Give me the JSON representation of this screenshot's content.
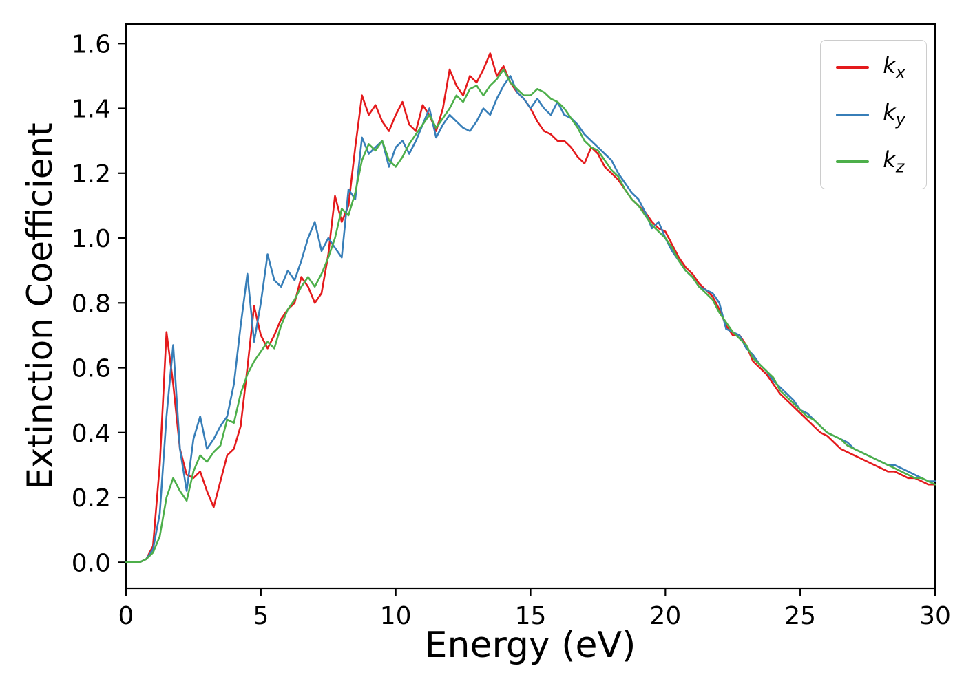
{
  "figure": {
    "background": "#ffffff"
  },
  "chart_data": {
    "type": "line",
    "title": "",
    "xlabel": "Energy (eV)",
    "ylabel": "Extinction Coefficient",
    "xlim": [
      0,
      30
    ],
    "ylim": [
      -0.08,
      1.66
    ],
    "x_ticks": [
      0,
      5,
      10,
      15,
      20,
      25,
      30
    ],
    "x_tick_labels": [
      "0",
      "5",
      "10",
      "15",
      "20",
      "25",
      "30"
    ],
    "y_ticks": [
      0.0,
      0.2,
      0.4,
      0.6,
      0.8,
      1.0,
      1.2,
      1.4,
      1.6
    ],
    "y_tick_labels": [
      "0.0",
      "0.2",
      "0.4",
      "0.6",
      "0.8",
      "1.0",
      "1.2",
      "1.4",
      "1.6"
    ],
    "grid": false,
    "legend_position": "upper right",
    "x_start": 0,
    "x_step": 0.25,
    "series": [
      {
        "name": "k_x",
        "color": "#e41a1c",
        "values": [
          0.0,
          0.0,
          0.0,
          0.01,
          0.05,
          0.3,
          0.71,
          0.55,
          0.35,
          0.27,
          0.26,
          0.28,
          0.22,
          0.17,
          0.25,
          0.33,
          0.35,
          0.42,
          0.6,
          0.79,
          0.7,
          0.66,
          0.7,
          0.75,
          0.78,
          0.8,
          0.88,
          0.85,
          0.8,
          0.83,
          0.95,
          1.13,
          1.05,
          1.1,
          1.28,
          1.44,
          1.38,
          1.41,
          1.36,
          1.33,
          1.38,
          1.42,
          1.35,
          1.33,
          1.41,
          1.38,
          1.33,
          1.4,
          1.52,
          1.47,
          1.44,
          1.5,
          1.48,
          1.52,
          1.57,
          1.5,
          1.53,
          1.48,
          1.45,
          1.43,
          1.4,
          1.36,
          1.33,
          1.32,
          1.3,
          1.3,
          1.28,
          1.25,
          1.23,
          1.28,
          1.26,
          1.22,
          1.2,
          1.18,
          1.15,
          1.12,
          1.1,
          1.08,
          1.05,
          1.03,
          1.02,
          0.98,
          0.94,
          0.91,
          0.89,
          0.86,
          0.84,
          0.82,
          0.78,
          0.73,
          0.7,
          0.7,
          0.67,
          0.62,
          0.6,
          0.58,
          0.55,
          0.52,
          0.5,
          0.48,
          0.46,
          0.44,
          0.42,
          0.4,
          0.39,
          0.37,
          0.35,
          0.34,
          0.33,
          0.32,
          0.31,
          0.3,
          0.29,
          0.28,
          0.28,
          0.27,
          0.26,
          0.26,
          0.25,
          0.24,
          0.24
        ]
      },
      {
        "name": "k_y",
        "color": "#377eb8",
        "values": [
          0.0,
          0.0,
          0.0,
          0.01,
          0.04,
          0.15,
          0.45,
          0.67,
          0.35,
          0.22,
          0.38,
          0.45,
          0.35,
          0.38,
          0.42,
          0.45,
          0.55,
          0.73,
          0.89,
          0.68,
          0.8,
          0.95,
          0.87,
          0.85,
          0.9,
          0.87,
          0.93,
          1.0,
          1.05,
          0.96,
          1.0,
          0.97,
          0.94,
          1.15,
          1.12,
          1.31,
          1.26,
          1.28,
          1.3,
          1.22,
          1.28,
          1.3,
          1.26,
          1.3,
          1.35,
          1.4,
          1.31,
          1.35,
          1.38,
          1.36,
          1.34,
          1.33,
          1.36,
          1.4,
          1.38,
          1.43,
          1.47,
          1.5,
          1.45,
          1.43,
          1.4,
          1.43,
          1.4,
          1.38,
          1.42,
          1.38,
          1.37,
          1.35,
          1.32,
          1.3,
          1.28,
          1.26,
          1.24,
          1.2,
          1.17,
          1.14,
          1.12,
          1.08,
          1.03,
          1.05,
          1.0,
          0.96,
          0.93,
          0.9,
          0.88,
          0.85,
          0.84,
          0.83,
          0.8,
          0.72,
          0.71,
          0.7,
          0.66,
          0.64,
          0.61,
          0.59,
          0.56,
          0.54,
          0.52,
          0.5,
          0.47,
          0.46,
          0.44,
          0.42,
          0.4,
          0.39,
          0.38,
          0.37,
          0.35,
          0.34,
          0.33,
          0.32,
          0.31,
          0.3,
          0.3,
          0.29,
          0.28,
          0.27,
          0.26,
          0.25,
          0.25
        ]
      },
      {
        "name": "k_z",
        "color": "#4daf4a",
        "values": [
          0.0,
          0.0,
          0.0,
          0.01,
          0.03,
          0.08,
          0.2,
          0.26,
          0.22,
          0.19,
          0.28,
          0.33,
          0.31,
          0.34,
          0.36,
          0.44,
          0.43,
          0.52,
          0.58,
          0.62,
          0.65,
          0.68,
          0.66,
          0.73,
          0.78,
          0.81,
          0.85,
          0.88,
          0.85,
          0.89,
          0.94,
          1.0,
          1.09,
          1.07,
          1.14,
          1.24,
          1.29,
          1.27,
          1.3,
          1.24,
          1.22,
          1.25,
          1.29,
          1.32,
          1.35,
          1.38,
          1.34,
          1.37,
          1.4,
          1.44,
          1.42,
          1.46,
          1.47,
          1.44,
          1.47,
          1.49,
          1.52,
          1.48,
          1.46,
          1.44,
          1.44,
          1.46,
          1.45,
          1.43,
          1.42,
          1.4,
          1.37,
          1.34,
          1.3,
          1.28,
          1.27,
          1.24,
          1.21,
          1.19,
          1.15,
          1.12,
          1.1,
          1.07,
          1.04,
          1.02,
          1.0,
          0.97,
          0.93,
          0.9,
          0.88,
          0.85,
          0.83,
          0.81,
          0.77,
          0.74,
          0.71,
          0.69,
          0.67,
          0.63,
          0.61,
          0.59,
          0.57,
          0.53,
          0.51,
          0.49,
          0.47,
          0.45,
          0.44,
          0.42,
          0.4,
          0.39,
          0.38,
          0.36,
          0.35,
          0.34,
          0.33,
          0.32,
          0.31,
          0.3,
          0.29,
          0.28,
          0.27,
          0.26,
          0.26,
          0.25,
          0.24
        ]
      }
    ]
  }
}
